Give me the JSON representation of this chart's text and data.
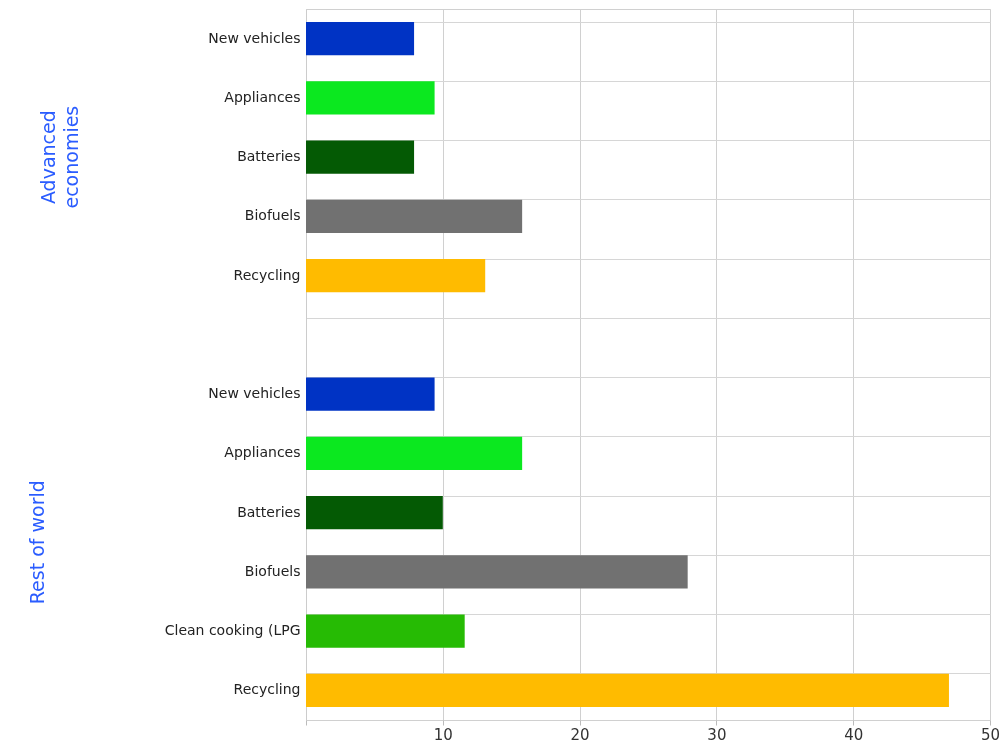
{
  "chart_data": {
    "type": "bar",
    "orientation": "horizontal",
    "categories": [
      "New vehicles",
      "Appliances",
      "Batteries",
      "Biofuels",
      "Recycling",
      null,
      "New vehicles",
      "Appliances",
      "Batteries",
      "Biofuels",
      "Clean cooking (LPG",
      "Recycling"
    ],
    "values": [
      7.9,
      9.4,
      7.9,
      15.8,
      13.1,
      null,
      9.4,
      15.8,
      10,
      27.9,
      11.6,
      47.0
    ],
    "colors": [
      "#0033c4",
      "#0be81f",
      "#045a04",
      "#717171",
      "#ffbb00",
      null,
      "#0033c4",
      "#0be81f",
      "#045a04",
      "#717171",
      "#26bb04",
      "#ffbb00"
    ],
    "xlim": [
      0,
      50
    ],
    "xticks": [
      {
        "value": 0,
        "label": null
      },
      10,
      20,
      30,
      40,
      50
    ],
    "grid": true,
    "annotations": [
      "Advanced economies",
      "Rest of world"
    ]
  }
}
